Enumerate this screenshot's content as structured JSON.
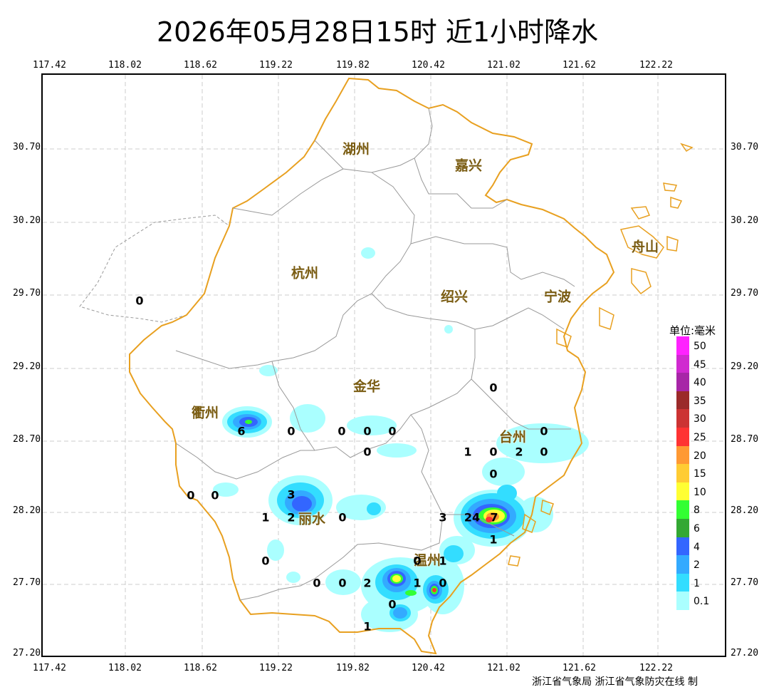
{
  "title": "2026年05月28日15时  近1小时降水",
  "x_axis": {
    "ticks": [
      "117.42",
      "118.02",
      "118.62",
      "119.22",
      "119.82",
      "120.42",
      "121.02",
      "121.62",
      "122.22"
    ]
  },
  "y_axis": {
    "ticks": [
      "30.70",
      "30.20",
      "29.70",
      "29.20",
      "28.70",
      "28.20",
      "27.70",
      "27.20"
    ]
  },
  "cities": [
    {
      "name": "湖州"
    },
    {
      "name": "嘉兴"
    },
    {
      "name": "杭州"
    },
    {
      "name": "绍兴"
    },
    {
      "name": "宁波"
    },
    {
      "name": "舟山"
    },
    {
      "name": "金华"
    },
    {
      "name": "衢州"
    },
    {
      "name": "台州"
    },
    {
      "name": "丽水"
    },
    {
      "name": "温州"
    }
  ],
  "precip_values": [
    "0",
    "0",
    "6",
    "0",
    "0",
    "0",
    "0",
    "0",
    "1",
    "0",
    "2",
    "0",
    "0",
    "0",
    "0",
    "3",
    "0",
    "1",
    "2",
    "0",
    "3",
    "24",
    "7",
    "1",
    "0",
    "0",
    "1",
    "0",
    "0",
    "2",
    "1",
    "0",
    "0",
    "1"
  ],
  "legend": {
    "title": "单位:毫米",
    "items": [
      {
        "label": "50",
        "color": "#ff22ff"
      },
      {
        "label": "45",
        "color": "#d02ad0"
      },
      {
        "label": "40",
        "color": "#a726a7"
      },
      {
        "label": "35",
        "color": "#9b2a2a"
      },
      {
        "label": "30",
        "color": "#cc3333"
      },
      {
        "label": "25",
        "color": "#ff3333"
      },
      {
        "label": "20",
        "color": "#ff9933"
      },
      {
        "label": "15",
        "color": "#ffcc33"
      },
      {
        "label": "10",
        "color": "#ffff33"
      },
      {
        "label": "8",
        "color": "#33ff33"
      },
      {
        "label": "6",
        "color": "#33a833"
      },
      {
        "label": "4",
        "color": "#3366ff"
      },
      {
        "label": "2",
        "color": "#33aaff"
      },
      {
        "label": "1",
        "color": "#33ddff"
      },
      {
        "label": "0.1",
        "color": "#aaffff"
      }
    ]
  },
  "footer": "浙江省气象局 浙江省气象防灾在线 制",
  "colors": {
    "province_border": "#e8a020",
    "city_border": "#999999",
    "grid": "#cccccc"
  }
}
